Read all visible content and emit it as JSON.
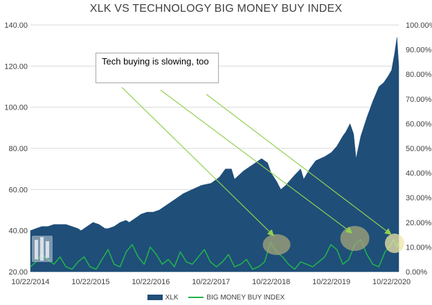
{
  "chart_data": {
    "type": "area",
    "title": "XLK VS TECHNOLOGY BIG MONEY BUY INDEX",
    "x_ticks": [
      "10/22/2014",
      "10/22/2015",
      "10/22/2016",
      "10/22/2017",
      "10/22/2018",
      "10/22/2019",
      "10/22/2020"
    ],
    "y_left": {
      "ticks": [
        "20.00",
        "40.00",
        "60.00",
        "80.00",
        "100.00",
        "120.00",
        "140.00"
      ],
      "lim": [
        20,
        140
      ]
    },
    "y_right": {
      "ticks": [
        "0.00%",
        "10.00%",
        "20.00%",
        "30.00%",
        "40.00%",
        "50.00%",
        "60.00%",
        "70.00%",
        "80.00%",
        "90.00%",
        "100.00%"
      ],
      "lim": [
        0,
        100
      ]
    },
    "annotation": "Tech buying is slowing, too",
    "series": [
      {
        "name": "XLK",
        "type": "area",
        "axis": "left",
        "color": "#1f4e79",
        "x": [
          2014.81,
          2014.9,
          2015.0,
          2015.1,
          2015.2,
          2015.3,
          2015.4,
          2015.5,
          2015.6,
          2015.65,
          2015.75,
          2015.85,
          2015.95,
          2016.05,
          2016.1,
          2016.2,
          2016.3,
          2016.4,
          2016.45,
          2016.55,
          2016.65,
          2016.75,
          2016.85,
          2016.95,
          2017.05,
          2017.2,
          2017.35,
          2017.5,
          2017.65,
          2017.81,
          2017.95,
          2018.05,
          2018.15,
          2018.2,
          2018.35,
          2018.5,
          2018.65,
          2018.75,
          2018.81,
          2018.9,
          2018.97,
          2019.05,
          2019.2,
          2019.3,
          2019.35,
          2019.45,
          2019.55,
          2019.7,
          2019.81,
          2019.9,
          2020.0,
          2020.05,
          2020.12,
          2020.18,
          2020.22,
          2020.3,
          2020.4,
          2020.5,
          2020.6,
          2020.68,
          2020.75,
          2020.81,
          2020.86,
          2020.9,
          2020.93
        ],
        "values": [
          40,
          41,
          42,
          42,
          43,
          43,
          43,
          42,
          41,
          40,
          42,
          44,
          43,
          41,
          41,
          42,
          44,
          45,
          44,
          46,
          48,
          49,
          49,
          50,
          52,
          55,
          58,
          60,
          62,
          63,
          66,
          70,
          70,
          65,
          69,
          72,
          75,
          73,
          68,
          64,
          60,
          62,
          67,
          70,
          65,
          70,
          74,
          76,
          78,
          81,
          86,
          88,
          92,
          87,
          75,
          86,
          95,
          103,
          110,
          112,
          115,
          118,
          126,
          134,
          120
        ]
      },
      {
        "name": "BIG MONEY BUY INDEX",
        "type": "line",
        "axis": "right",
        "color": "#22b14c",
        "x": [
          2014.81,
          2014.9,
          2015.0,
          2015.1,
          2015.2,
          2015.3,
          2015.4,
          2015.5,
          2015.6,
          2015.7,
          2015.8,
          2015.9,
          2016.0,
          2016.1,
          2016.2,
          2016.3,
          2016.4,
          2016.5,
          2016.6,
          2016.7,
          2016.8,
          2016.9,
          2017.0,
          2017.1,
          2017.2,
          2017.3,
          2017.4,
          2017.5,
          2017.6,
          2017.7,
          2017.8,
          2017.9,
          2018.0,
          2018.1,
          2018.2,
          2018.3,
          2018.4,
          2018.5,
          2018.6,
          2018.7,
          2018.8,
          2018.9,
          2019.0,
          2019.1,
          2019.2,
          2019.3,
          2019.4,
          2019.5,
          2019.6,
          2019.7,
          2019.8,
          2019.9,
          2020.0,
          2020.1,
          2020.2,
          2020.3,
          2020.4,
          2020.5,
          2020.6,
          2020.7,
          2020.8,
          2020.85,
          2020.9,
          2020.93
        ],
        "values": [
          2,
          4,
          7,
          5,
          3,
          6,
          2,
          1,
          4,
          6,
          2,
          1,
          5,
          9,
          3,
          2,
          8,
          11,
          6,
          3,
          10,
          7,
          3,
          5,
          2,
          8,
          4,
          3,
          6,
          9,
          4,
          2,
          4,
          7,
          2,
          3,
          5,
          1,
          2,
          4,
          12,
          8,
          6,
          3,
          1,
          4,
          3,
          2,
          4,
          6,
          11,
          9,
          3,
          5,
          11,
          13,
          7,
          3,
          2,
          8,
          11,
          13,
          10,
          12
        ]
      }
    ]
  }
}
